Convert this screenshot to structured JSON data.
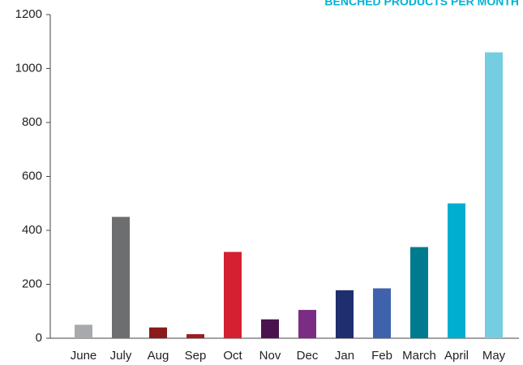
{
  "chart_data": {
    "type": "bar",
    "title": "BENCHED PRODUCTS PER MONTH",
    "categories": [
      "June",
      "July",
      "Aug",
      "Sep",
      "Oct",
      "Nov",
      "Dec",
      "Jan",
      "Feb",
      "March",
      "April",
      "May"
    ],
    "values": [
      50,
      450,
      40,
      15,
      320,
      70,
      105,
      178,
      185,
      338,
      500,
      1060
    ],
    "colors": [
      "#a7a9ac",
      "#6d6e70",
      "#8b1a1a",
      "#9e1b22",
      "#d42030",
      "#4a1350",
      "#7b2d83",
      "#1f2e6e",
      "#3f62ad",
      "#007a8f",
      "#00aed0",
      "#74cde0"
    ],
    "ylim": [
      0,
      1200
    ],
    "yticks": [
      0,
      200,
      400,
      600,
      800,
      1000,
      1200
    ],
    "grid": false
  }
}
